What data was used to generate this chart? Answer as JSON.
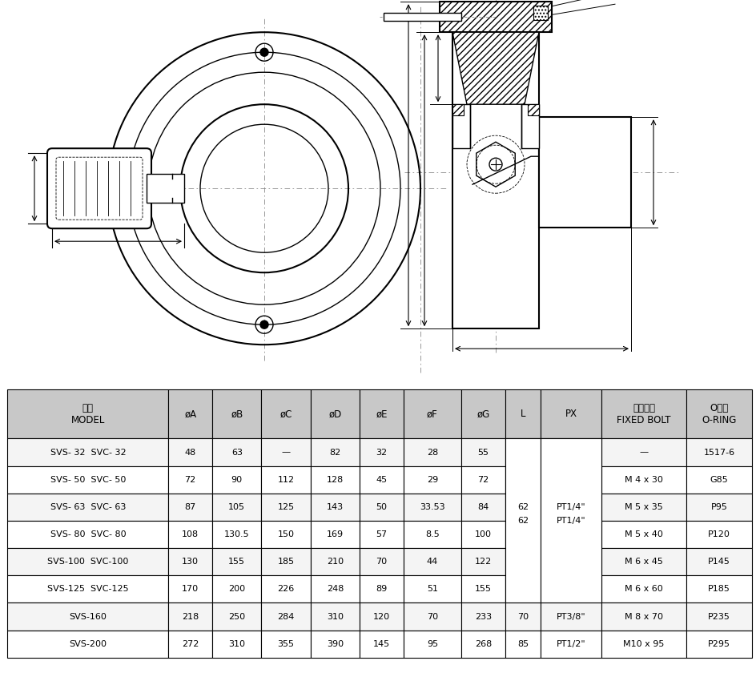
{
  "bg_color": "#ffffff",
  "table_header_bg": "#c8c8c8",
  "table_row_bg_alt": "#f0f0f0",
  "table_row_bg": "#ffffff",
  "headers": [
    "型式\nMODEL",
    "øA",
    "øB",
    "øC",
    "øD",
    "øE",
    "øF",
    "øG",
    "L",
    "PX",
    "固定螺絲\nFIXED BOLT",
    "O型環\nO-RING"
  ],
  "col_widths": [
    1.9,
    0.52,
    0.58,
    0.58,
    0.58,
    0.52,
    0.68,
    0.52,
    0.42,
    0.72,
    1.0,
    0.78
  ],
  "rows": [
    [
      "SVS- 32  SVC- 32",
      "48",
      "63",
      "—",
      "82",
      "32",
      "28",
      "55",
      "",
      "",
      "—",
      "1517-6"
    ],
    [
      "SVS- 50  SVC- 50",
      "72",
      "90",
      "112",
      "128",
      "45",
      "29",
      "72",
      "",
      "",
      "M 4 x 30",
      "G85"
    ],
    [
      "SVS- 63  SVC- 63",
      "87",
      "105",
      "125",
      "143",
      "50",
      "33.53",
      "84",
      "62",
      "PT1/4\"",
      "M 5 x 35",
      "P95"
    ],
    [
      "SVS- 80  SVC- 80",
      "108",
      "130.5",
      "150",
      "169",
      "57",
      "8.5",
      "100",
      "",
      "",
      "M 5 x 40",
      "P120"
    ],
    [
      "SVS-100  SVC-100",
      "130",
      "155",
      "185",
      "210",
      "70",
      "44",
      "122",
      "",
      "",
      "M 6 x 45",
      "P145"
    ],
    [
      "SVS-125  SVC-125",
      "170",
      "200",
      "226",
      "248",
      "89",
      "51",
      "155",
      "",
      "",
      "M 6 x 60",
      "P185"
    ],
    [
      "SVS-160",
      "218",
      "250",
      "284",
      "310",
      "120",
      "70",
      "233",
      "70",
      "PT3/8\"",
      "M 8 x 70",
      "P235"
    ],
    [
      "SVS-200",
      "272",
      "310",
      "355",
      "390",
      "145",
      "95",
      "268",
      "85",
      "PT1/2\"",
      "M10 x 95",
      "P295"
    ]
  ]
}
